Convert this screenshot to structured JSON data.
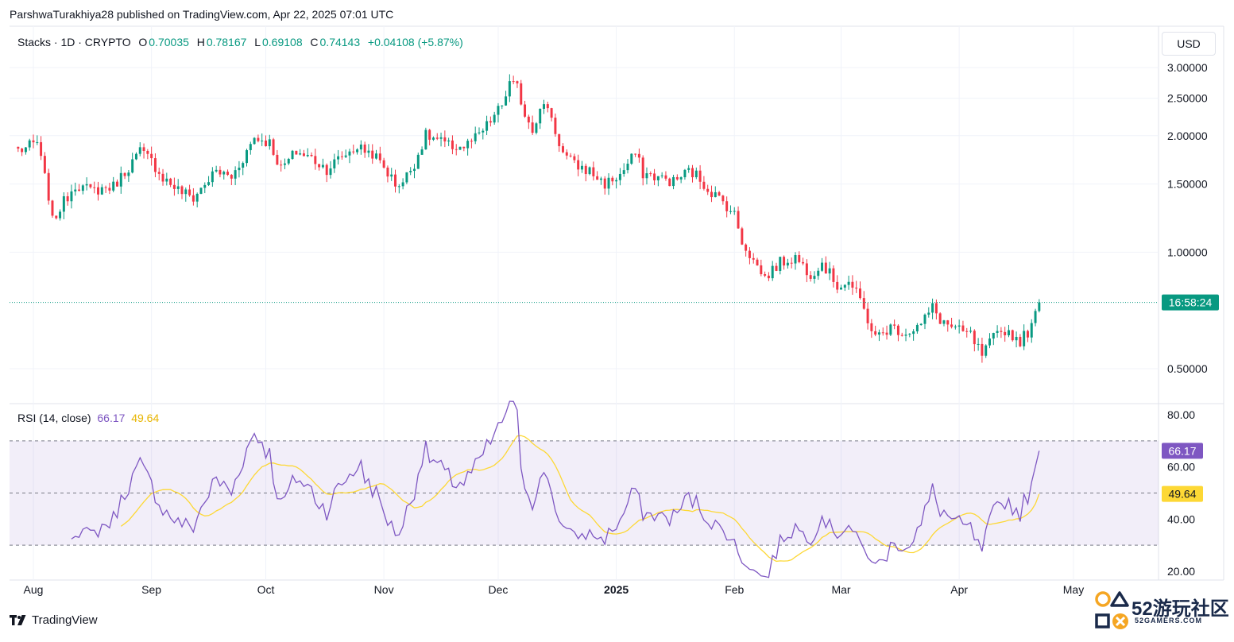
{
  "header": {
    "publisher": "ParshwaTurakhiya28 published on TradingView.com, Apr 22, 2025 07:01 UTC"
  },
  "legend": {
    "symbol": "Stacks · 1D · CRYPTO",
    "o_label": "O",
    "o_value": "0.70035",
    "h_label": "H",
    "h_value": "0.78167",
    "l_label": "L",
    "l_value": "0.69108",
    "c_label": "C",
    "c_value": "0.74143",
    "change": "+0.04108 (+5.87%)"
  },
  "currency_button": "USD",
  "countdown": "16:58:24",
  "rsi_legend": {
    "label": "RSI (14, close)",
    "rsi_value": "66.17",
    "ma_value": "49.64"
  },
  "footer": {
    "brand": "TradingView"
  },
  "watermark": {
    "text": "52游玩社区",
    "sub": "52GAMERS.COM"
  },
  "colors": {
    "up": "#089981",
    "down": "#f23645",
    "rsi": "#7e57c2",
    "rsi_ma": "#fdd835",
    "band": "#7e57c2",
    "grid": "#f0f3fa"
  },
  "chart_data": [
    {
      "type": "candlestick",
      "title": "Stacks · 1D · CRYPTO",
      "y_axis": {
        "scale": "log",
        "ticks": [
          "3.00000",
          "2.50000",
          "2.00000",
          "1.50000",
          "1.00000",
          "0.50000"
        ],
        "tick_values": [
          3.0,
          2.5,
          2.0,
          1.5,
          1.0,
          0.5
        ]
      },
      "x_axis": {
        "ticks": [
          "Aug",
          "Sep",
          "Oct",
          "Nov",
          "Dec",
          "2025",
          "Feb",
          "Mar",
          "Apr",
          "May"
        ],
        "tick_dates": [
          "2024-08-01",
          "2024-09-01",
          "2024-10-01",
          "2024-11-01",
          "2024-12-01",
          "2025-01-01",
          "2025-02-01",
          "2025-03-01",
          "2025-04-01",
          "2025-05-01"
        ]
      },
      "last_close": 0.74143,
      "close_anchors": [
        [
          "2024-07-29",
          1.84
        ],
        [
          "2024-08-02",
          1.92
        ],
        [
          "2024-08-05",
          1.4
        ],
        [
          "2024-08-06",
          1.2
        ],
        [
          "2024-08-08",
          1.3
        ],
        [
          "2024-08-12",
          1.5
        ],
        [
          "2024-08-16",
          1.44
        ],
        [
          "2024-08-22",
          1.48
        ],
        [
          "2024-08-26",
          1.66
        ],
        [
          "2024-08-29",
          1.82
        ],
        [
          "2024-09-01",
          1.72
        ],
        [
          "2024-09-04",
          1.56
        ],
        [
          "2024-09-08",
          1.45
        ],
        [
          "2024-09-12",
          1.38
        ],
        [
          "2024-09-15",
          1.5
        ],
        [
          "2024-09-18",
          1.62
        ],
        [
          "2024-09-22",
          1.56
        ],
        [
          "2024-09-25",
          1.75
        ],
        [
          "2024-09-28",
          1.98
        ],
        [
          "2024-10-02",
          1.92
        ],
        [
          "2024-10-05",
          1.64
        ],
        [
          "2024-10-09",
          1.82
        ],
        [
          "2024-10-13",
          1.75
        ],
        [
          "2024-10-17",
          1.64
        ],
        [
          "2024-10-21",
          1.77
        ],
        [
          "2024-10-25",
          1.87
        ],
        [
          "2024-10-29",
          1.8
        ],
        [
          "2024-11-01",
          1.66
        ],
        [
          "2024-11-04",
          1.5
        ],
        [
          "2024-11-06",
          1.52
        ],
        [
          "2024-11-09",
          1.7
        ],
        [
          "2024-11-12",
          2.0
        ],
        [
          "2024-11-15",
          1.95
        ],
        [
          "2024-11-18",
          1.88
        ],
        [
          "2024-11-22",
          1.87
        ],
        [
          "2024-11-26",
          2.0
        ],
        [
          "2024-11-29",
          2.18
        ],
        [
          "2024-12-02",
          2.4
        ],
        [
          "2024-12-04",
          2.72
        ],
        [
          "2024-12-06",
          2.66
        ],
        [
          "2024-12-08",
          2.28
        ],
        [
          "2024-12-10",
          2.1
        ],
        [
          "2024-12-12",
          2.32
        ],
        [
          "2024-12-14",
          2.4
        ],
        [
          "2024-12-16",
          2.05
        ],
        [
          "2024-12-18",
          1.8
        ],
        [
          "2024-12-21",
          1.68
        ],
        [
          "2024-12-25",
          1.62
        ],
        [
          "2024-12-29",
          1.5
        ],
        [
          "2025-01-02",
          1.58
        ],
        [
          "2025-01-06",
          1.8
        ],
        [
          "2025-01-08",
          1.6
        ],
        [
          "2025-01-12",
          1.56
        ],
        [
          "2025-01-16",
          1.52
        ],
        [
          "2025-01-20",
          1.62
        ],
        [
          "2025-01-22",
          1.58
        ],
        [
          "2025-01-25",
          1.46
        ],
        [
          "2025-01-30",
          1.32
        ],
        [
          "2025-02-01",
          1.25
        ],
        [
          "2025-02-03",
          1.07
        ],
        [
          "2025-02-06",
          0.95
        ],
        [
          "2025-02-09",
          0.86
        ],
        [
          "2025-02-13",
          0.94
        ],
        [
          "2025-02-17",
          0.97
        ],
        [
          "2025-02-21",
          0.88
        ],
        [
          "2025-02-24",
          0.94
        ],
        [
          "2025-02-28",
          0.82
        ],
        [
          "2025-03-03",
          0.84
        ],
        [
          "2025-03-06",
          0.75
        ],
        [
          "2025-03-10",
          0.6
        ],
        [
          "2025-03-14",
          0.64
        ],
        [
          "2025-03-18",
          0.62
        ],
        [
          "2025-03-22",
          0.65
        ],
        [
          "2025-03-25",
          0.72
        ],
        [
          "2025-03-27",
          0.67
        ],
        [
          "2025-03-31",
          0.63
        ],
        [
          "2025-04-04",
          0.61
        ],
        [
          "2025-04-07",
          0.54
        ],
        [
          "2025-04-10",
          0.6
        ],
        [
          "2025-04-13",
          0.63
        ],
        [
          "2025-04-17",
          0.59
        ],
        [
          "2025-04-20",
          0.64
        ],
        [
          "2025-04-22",
          0.74
        ]
      ]
    },
    {
      "type": "line",
      "title": "RSI (14, close)",
      "y_axis": {
        "ticks": [
          "80.00",
          "60.00",
          "40.00",
          "20.00"
        ],
        "tick_values": [
          80,
          60,
          40,
          20
        ],
        "bands": [
          30,
          50,
          70
        ]
      },
      "series": [
        {
          "name": "RSI",
          "last": 66.17
        },
        {
          "name": "MA",
          "last": 49.64
        }
      ]
    }
  ]
}
